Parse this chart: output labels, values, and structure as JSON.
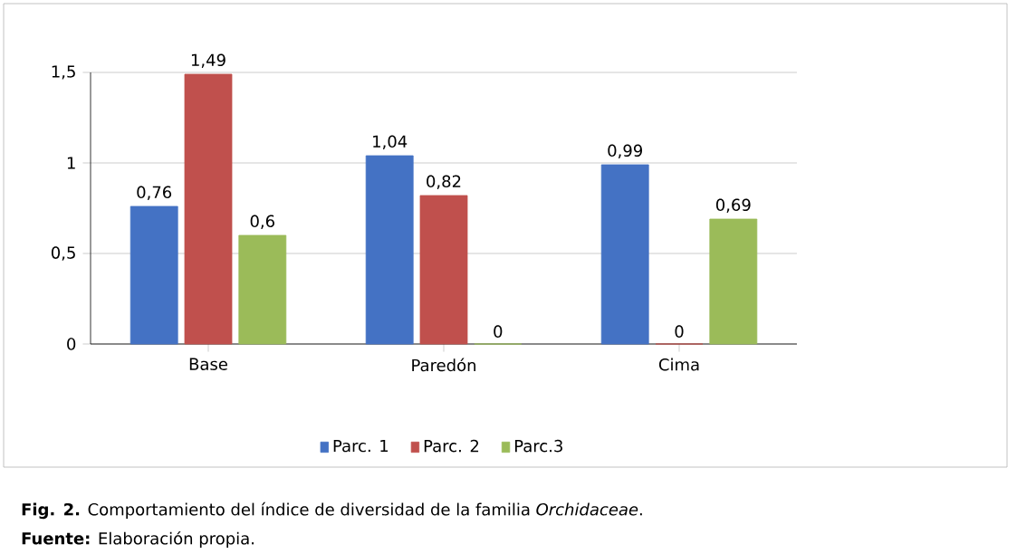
{
  "chart_data": {
    "type": "bar",
    "categories": [
      "Base",
      "Paredón",
      "Cima"
    ],
    "series": [
      {
        "name": "Parc. 1",
        "color": "#4472c4",
        "values": [
          0.76,
          1.04,
          0.99
        ],
        "value_labels": [
          "0,76",
          "1,04",
          "0,99"
        ]
      },
      {
        "name": "Parc. 2",
        "color": "#c0504d",
        "values": [
          1.49,
          0.82,
          0
        ],
        "value_labels": [
          "1,49",
          "0,82",
          "0"
        ]
      },
      {
        "name": "Parc.3",
        "color": "#9bbb59",
        "values": [
          0.6,
          0,
          0.69
        ],
        "value_labels": [
          "0,6",
          "0",
          "0,69"
        ]
      }
    ],
    "ylim": [
      0,
      1.5
    ],
    "yticks": [
      0,
      {
        "value": 0.5,
        "label": "0,5"
      },
      1,
      {
        "value": 1.5,
        "label": "1,5"
      }
    ],
    "grid": "y",
    "legend": "bottom",
    "annotations": [
      "**Fig.  2.** Comportamiento del índice de diversidad de la familia *Orchidaceae*.",
      "**Fuente:** Elaboración propia."
    ]
  }
}
